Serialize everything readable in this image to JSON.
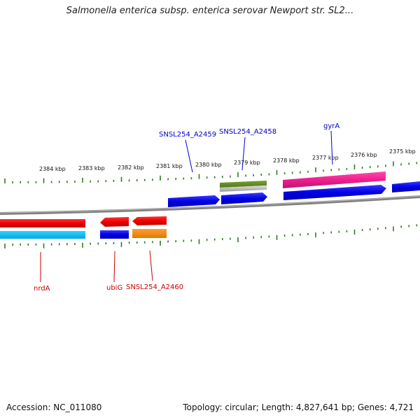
{
  "title": "Salmonella enterica subsp. enterica serovar Newport str. SL2...",
  "footer": {
    "accession": "Accession: NC_011080",
    "topology": "Topology: circular; Length: 4,827,641 bp; Genes: 4,721"
  },
  "colors": {
    "forward_label": "#0000cc",
    "reverse_label": "#cc0000",
    "tick": "#2f7d22",
    "backbone": "#808080"
  },
  "kbp_labels": [
    "2384 kbp",
    "2383 kbp",
    "2382 kbp",
    "2381 kbp",
    "2380 kbp",
    "2379 kbp",
    "2378 kbp",
    "2377 kbp",
    "2376 kbp",
    "2375 kbp"
  ],
  "gene_labels": [
    {
      "text": "SNSL254_A2459",
      "strand": "forward"
    },
    {
      "text": "SNSL254_A2458",
      "strand": "forward"
    },
    {
      "text": "gyrA",
      "strand": "forward"
    },
    {
      "text": "nrdA",
      "strand": "reverse"
    },
    {
      "text": "ubiG",
      "strand": "reverse"
    },
    {
      "text": "SNSL254_A2460",
      "strand": "reverse"
    }
  ]
}
